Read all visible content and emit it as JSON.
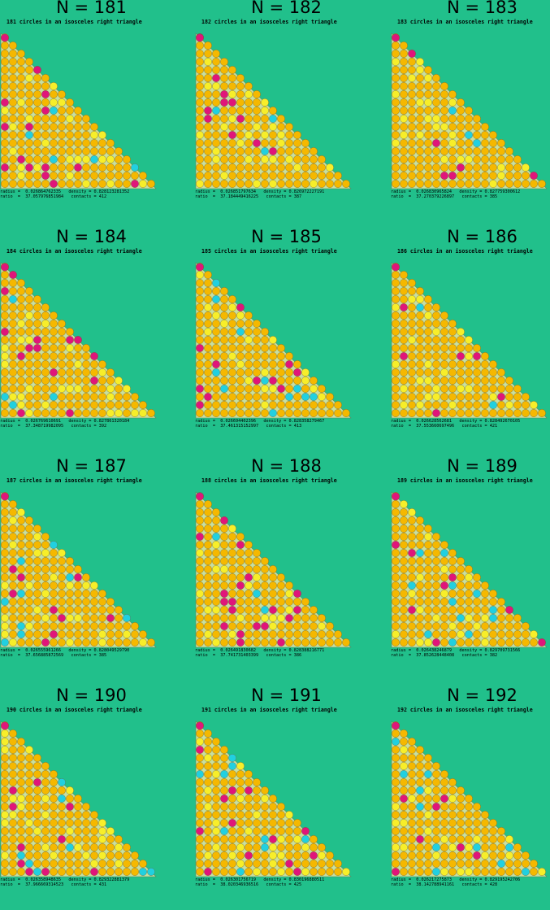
{
  "colors": {
    "background": "#21c08b",
    "triangle_fill": "#c8dfa0",
    "circle_normal": "#f5b800",
    "circle_free": "#e0157a",
    "circle_loose": "#21d0e0",
    "circle_alt": "#f7ee2a"
  },
  "panels": [
    {
      "title": "N = 181",
      "subtitle": "181 circles in an isosceles right triangle",
      "radius": "0.026864762335",
      "density": "0.828123281352",
      "ratio": "37.057976851984",
      "contacts": "412"
    },
    {
      "title": "N = 182",
      "subtitle": "182 circles in an isosceles right triangle",
      "radius": "0.026851797634",
      "density": "0.826972227191",
      "ratio": "37.184449416225",
      "contacts": "387"
    },
    {
      "title": "N = 183",
      "subtitle": "183 circles in an isosceles right triangle",
      "radius": "0.026830965824",
      "density": "0.827759300612",
      "ratio": "37.270379226897",
      "contacts": "385"
    },
    {
      "title": "N = 184",
      "subtitle": "184 circles in an isosceles right triangle",
      "radius": "0.026769610691",
      "density": "0.827861320184",
      "ratio": "37.348719982095",
      "contacts": "392"
    },
    {
      "title": "N = 185",
      "subtitle": "185 circles in an isosceles right triangle",
      "radius": "0.026694402396",
      "density": "0.828358279467",
      "ratio": "37.461315152997",
      "contacts": "413"
    },
    {
      "title": "N = 186",
      "subtitle": "186 circles in an isosceles right triangle",
      "radius": "0.026628562681",
      "density": "0.828492670105",
      "ratio": "37.553660697496",
      "contacts": "421"
    },
    {
      "title": "N = 187",
      "subtitle": "187 circles in an isosceles right triangle",
      "radius": "0.026555961266",
      "density": "0.828049529790",
      "ratio": "37.656885872569",
      "contacts": "385"
    },
    {
      "title": "N = 188",
      "subtitle": "188 circles in an isosceles right triangle",
      "radius": "0.026491830682",
      "density": "0.828388216771",
      "ratio": "37.741731403399",
      "contacts": "386"
    },
    {
      "title": "N = 189",
      "subtitle": "189 circles in an isosceles right triangle",
      "radius": "0.026438246879",
      "density": "0.829709731566",
      "ratio": "37.852628448408",
      "contacts": "382"
    },
    {
      "title": "N = 190",
      "subtitle": "190 circles in an isosceles right triangle",
      "radius": "0.026358948635",
      "density": "0.829322881379",
      "ratio": "37.966669314523",
      "contacts": "431"
    },
    {
      "title": "N = 191",
      "subtitle": "191 circles in an isosceles right triangle",
      "radius": "0.026301756719",
      "density": "0.830196880511",
      "ratio": "38.020346936516",
      "contacts": "425"
    },
    {
      "title": "N = 192",
      "subtitle": "192 circles in an isosceles right triangle",
      "radius": "0.026217275873",
      "density": "0.829195242706",
      "ratio": "38.142788941161",
      "contacts": "428"
    }
  ]
}
